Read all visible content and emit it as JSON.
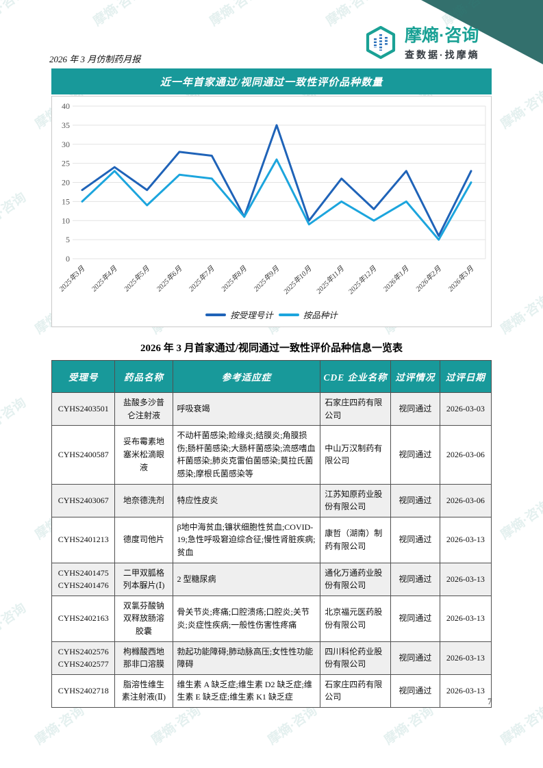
{
  "page": {
    "report_title": "2026 年 3 月仿制药月报",
    "page_number": "7"
  },
  "branding": {
    "brand_name": "摩熵·咨询",
    "slogan": "查数据·找摩熵",
    "watermark_text": "摩熵·咨询",
    "teal": "#18999a",
    "corner_color": "#33706d",
    "logo_teal": "#1aa195"
  },
  "chart_section": {
    "title": "近一年首家通过/视同通过一致性评价品种数量"
  },
  "chart_data": {
    "type": "line",
    "title": "近一年首家通过/视同通过一致性评价品种数量",
    "x": [
      "2025年3月",
      "2025年4月",
      "2025年5月",
      "2025年6月",
      "2025年7月",
      "2025年8月",
      "2025年9月",
      "2025年10月",
      "2025年11月",
      "2025年12月",
      "2026年1月",
      "2026年2月",
      "2026年3月"
    ],
    "series": [
      {
        "name": "按受理号计",
        "color": "#1f63b8",
        "values": [
          18,
          24,
          18,
          28,
          27,
          11,
          35,
          10,
          21,
          13,
          23,
          6,
          23
        ]
      },
      {
        "name": "按品种计",
        "color": "#1ca5dd",
        "values": [
          15,
          23,
          14,
          22,
          21,
          11,
          26,
          9,
          15,
          10,
          15,
          5,
          20
        ]
      }
    ],
    "ylim": [
      0,
      40
    ],
    "ytick_step": 5,
    "grid": true,
    "legend_position": "bottom"
  },
  "table": {
    "title": "2026 年 3 月首家通过/视同通过一致性评价品种信息一览表",
    "headers": [
      "受理号",
      "药品名称",
      "参考适应症",
      "CDE 企业名称",
      "过评情况",
      "过评日期"
    ],
    "col_widths_pct": [
      14.4,
      13.1,
      33.6,
      16.0,
      11.2,
      11.7
    ],
    "rows": [
      [
        "CYHS2403501",
        "盐酸多沙普仑注射液",
        "呼吸衰竭",
        "石家庄四药有限公司",
        "视同通过",
        "2026-03-03"
      ],
      [
        "CYHS2400587",
        "妥布霉素地塞米松滴眼液",
        "不动杆菌感染;睑缘炎;结膜炎;角膜损伤;肠杆菌感染;大肠杆菌感染;流感嗜血杆菌感染;肺炎克雷伯菌感染;莫拉氏菌感染;摩根氏菌感染等",
        "中山万汉制药有限公司",
        "视同通过",
        "2026-03-06"
      ],
      [
        "CYHS2403067",
        "地奈德洗剂",
        "特应性皮炎",
        "江苏知原药业股份有限公司",
        "视同通过",
        "2026-03-06"
      ],
      [
        "CYHS2401213",
        "德度司他片",
        "β地中海贫血;镰状细胞性贫血;COVID-19;急性呼吸窘迫综合征;慢性肾脏疾病;贫血",
        "康哲（湖南）制药有限公司",
        "视同通过",
        "2026-03-13"
      ],
      [
        "CYHS2401475\nCYHS2401476",
        "二甲双胍格列本脲片(Ⅰ)",
        "2 型糖尿病",
        "通化万通药业股份有限公司",
        "视同通过",
        "2026-03-13"
      ],
      [
        "CYHS2402163",
        "双氯芬酸钠双释放肠溶胶囊",
        "骨关节炎;疼痛;口腔溃疡;口腔炎;关节炎;炎症性疾病;一般性伤害性疼痛",
        "北京福元医药股份有限公司",
        "视同通过",
        "2026-03-13"
      ],
      [
        "CYHS2402576\nCYHS2402577",
        "枸橼酸西地那非口溶膜",
        "勃起功能障碍;肺动脉高压;女性性功能障碍",
        "四川科伦药业股份有限公司",
        "视同通过",
        "2026-03-13"
      ],
      [
        "CYHS2402718",
        "脂溶性维生素注射液(Ⅱ)",
        "维生素 A 缺乏症;维生素 D2 缺乏症;维生素 E 缺乏症;维生素 K1 缺乏症",
        "石家庄四药有限公司",
        "视同通过",
        "2026-03-13"
      ]
    ]
  }
}
